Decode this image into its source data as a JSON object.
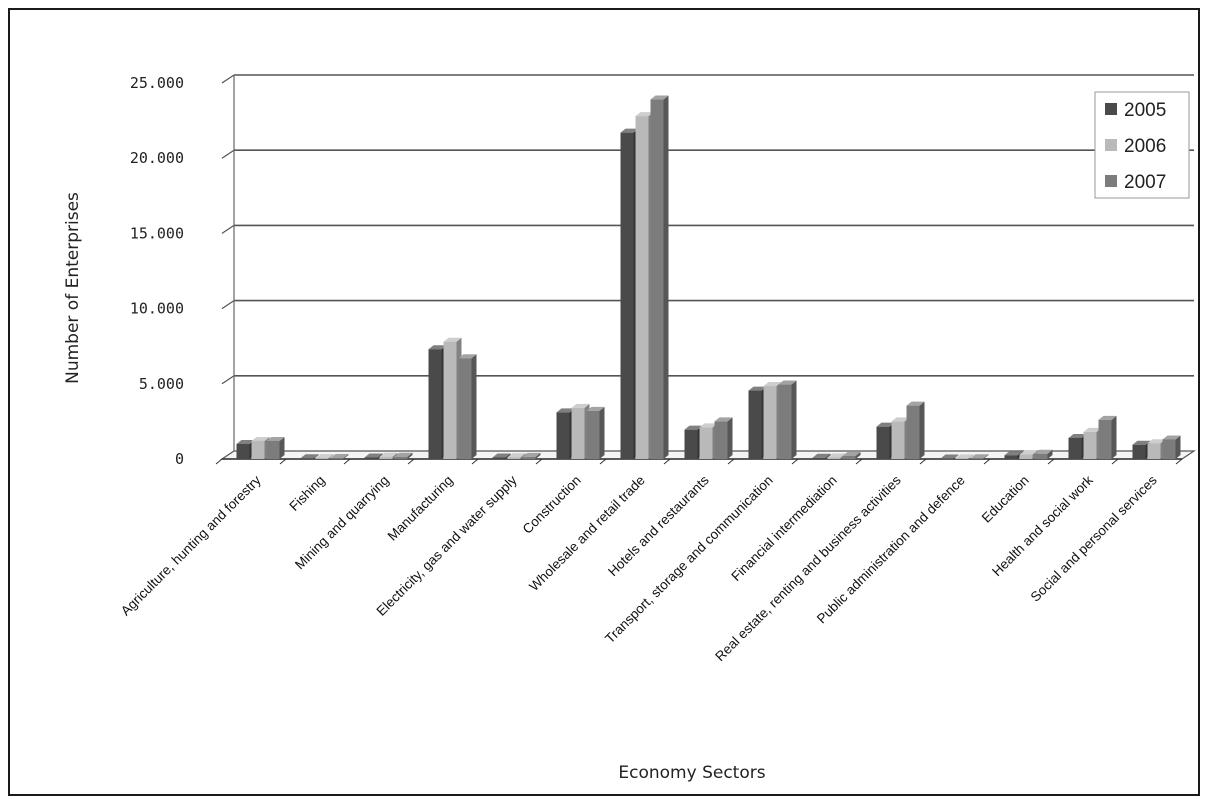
{
  "chart_data": {
    "type": "bar",
    "title": "",
    "xlabel": "Economy Sectors",
    "ylabel": "Number of Enterprises",
    "ylim": [
      0,
      25000
    ],
    "yticks": [
      "0",
      "5.000",
      "10.000",
      "15.000",
      "20.000",
      "25.000"
    ],
    "grid": true,
    "legend_position": "top-right",
    "colors": [
      "#4a4a4a",
      "#b9b9b9",
      "#7c7c7c"
    ],
    "categories": [
      "Agriculture, hunting and forestry",
      "Fishing",
      "Mining and quarrying",
      "Manufacturing",
      "Electricity, gas and water supply",
      "Construction",
      "Wholesale and retail trade",
      "Hotels and restaurants",
      "Transport, storage and communication",
      "Financial intermediation",
      "Real estate, renting and business activities",
      "Public administration and defence",
      "Education",
      "Health and social work",
      "Social and personal services"
    ],
    "series": [
      {
        "name": "2005",
        "values": [
          1000,
          50,
          100,
          7300,
          100,
          3100,
          21700,
          1950,
          4550,
          80,
          2150,
          30,
          250,
          1400,
          950
        ]
      },
      {
        "name": "2006",
        "values": [
          1200,
          60,
          150,
          7800,
          120,
          3400,
          22800,
          2100,
          4850,
          100,
          2500,
          40,
          300,
          1800,
          1050
        ]
      },
      {
        "name": "2007",
        "values": [
          1200,
          70,
          150,
          6700,
          140,
          3200,
          23900,
          2500,
          4950,
          200,
          3550,
          50,
          350,
          2600,
          1300
        ]
      }
    ]
  }
}
